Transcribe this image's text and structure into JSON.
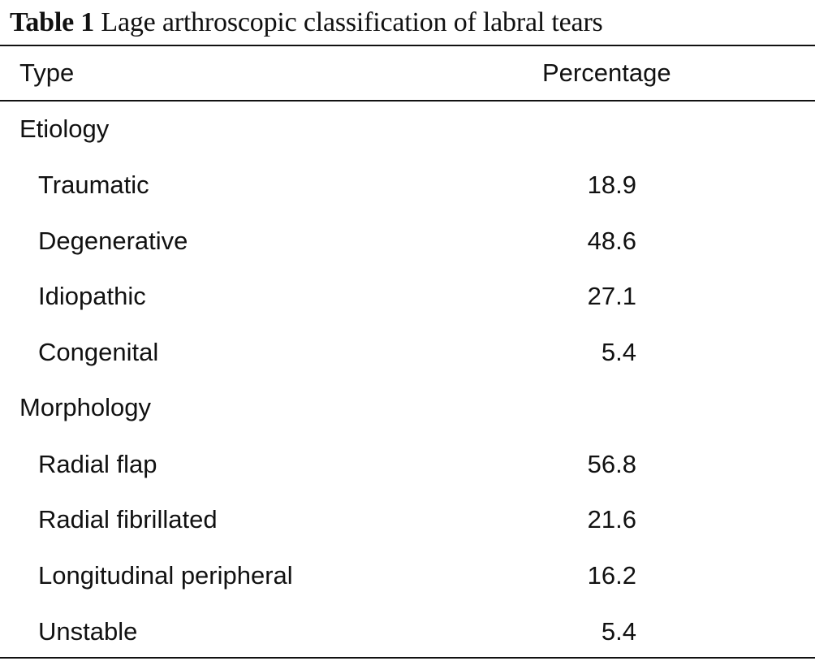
{
  "caption": {
    "label": "Table 1",
    "text": "Lage arthroscopic classification of labral tears"
  },
  "header": {
    "type": "Type",
    "percentage": "Percentage"
  },
  "groups": [
    {
      "name": "Etiology",
      "rows": [
        {
          "type": "Traumatic",
          "percentage": "18.9"
        },
        {
          "type": "Degenerative",
          "percentage": "48.6"
        },
        {
          "type": "Idiopathic",
          "percentage": "27.1"
        },
        {
          "type": "Congenital",
          "percentage": "5.4"
        }
      ]
    },
    {
      "name": "Morphology",
      "rows": [
        {
          "type": "Radial flap",
          "percentage": "56.8"
        },
        {
          "type": "Radial fibrillated",
          "percentage": "21.6"
        },
        {
          "type": "Longitudinal peripheral",
          "percentage": "16.2"
        },
        {
          "type": "Unstable",
          "percentage": "5.4"
        }
      ]
    }
  ]
}
